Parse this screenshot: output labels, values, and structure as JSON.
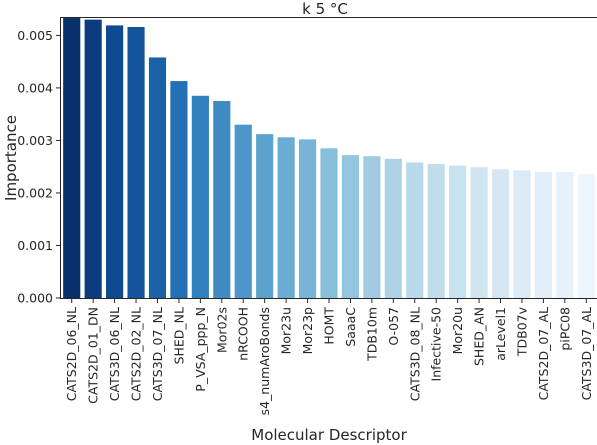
{
  "chart_data": {
    "type": "bar",
    "title": "k 5 °C",
    "xlabel": "Molecular Descriptor",
    "ylabel": "Importance",
    "ylim": [
      0,
      0.00535
    ],
    "yticks": [
      "0.000",
      "0.001",
      "0.002",
      "0.003",
      "0.004",
      "0.005"
    ],
    "ytick_values": [
      0,
      0.001,
      0.002,
      0.003,
      0.004,
      0.005
    ],
    "grid": false,
    "palette": "Blues_r",
    "categories": [
      "CATS2D_06_NL",
      "CATS2D_01_DN",
      "CATS3D_06_NL",
      "CATS2D_02_NL",
      "CATS3D_07_NL",
      "SHED_NL",
      "P_VSA_ppp_N",
      "Mor02s",
      "nRCOOH",
      "s4_numAroBonds",
      "Mor23u",
      "Mor23p",
      "HOMT",
      "SaaaC",
      "TDB10m",
      "O-057",
      "CATS3D_08_NL",
      "Infective-50",
      "Mor20u",
      "SHED_AN",
      "arLevel1",
      "TDB07v",
      "CATS2D_07_AL",
      "piPC08",
      "CATS3D_07_AL"
    ],
    "values": [
      0.00533,
      0.0053,
      0.00519,
      0.00516,
      0.00458,
      0.00413,
      0.00385,
      0.00375,
      0.0033,
      0.00312,
      0.00306,
      0.00302,
      0.00285,
      0.00272,
      0.0027,
      0.00265,
      0.00258,
      0.00255,
      0.00252,
      0.00249,
      0.00245,
      0.00243,
      0.0024,
      0.0024,
      0.00236
    ],
    "colors": [
      "#08306b",
      "#0b3d7e",
      "#0e4a8f",
      "#13559c",
      "#1a61a8",
      "#2470b4",
      "#317ebc",
      "#3e8ac3",
      "#4e96c9",
      "#5ca2ce",
      "#6aacd3",
      "#78b4d7",
      "#87bedb",
      "#94c5df",
      "#a1cbe3",
      "#aed3e6",
      "#b8d9e9",
      "#c1ddec",
      "#c9e2ef",
      "#d0e4f1",
      "#d6e7f3",
      "#dceaf5",
      "#e2eef7",
      "#e7f1f9",
      "#eef5fb"
    ]
  }
}
